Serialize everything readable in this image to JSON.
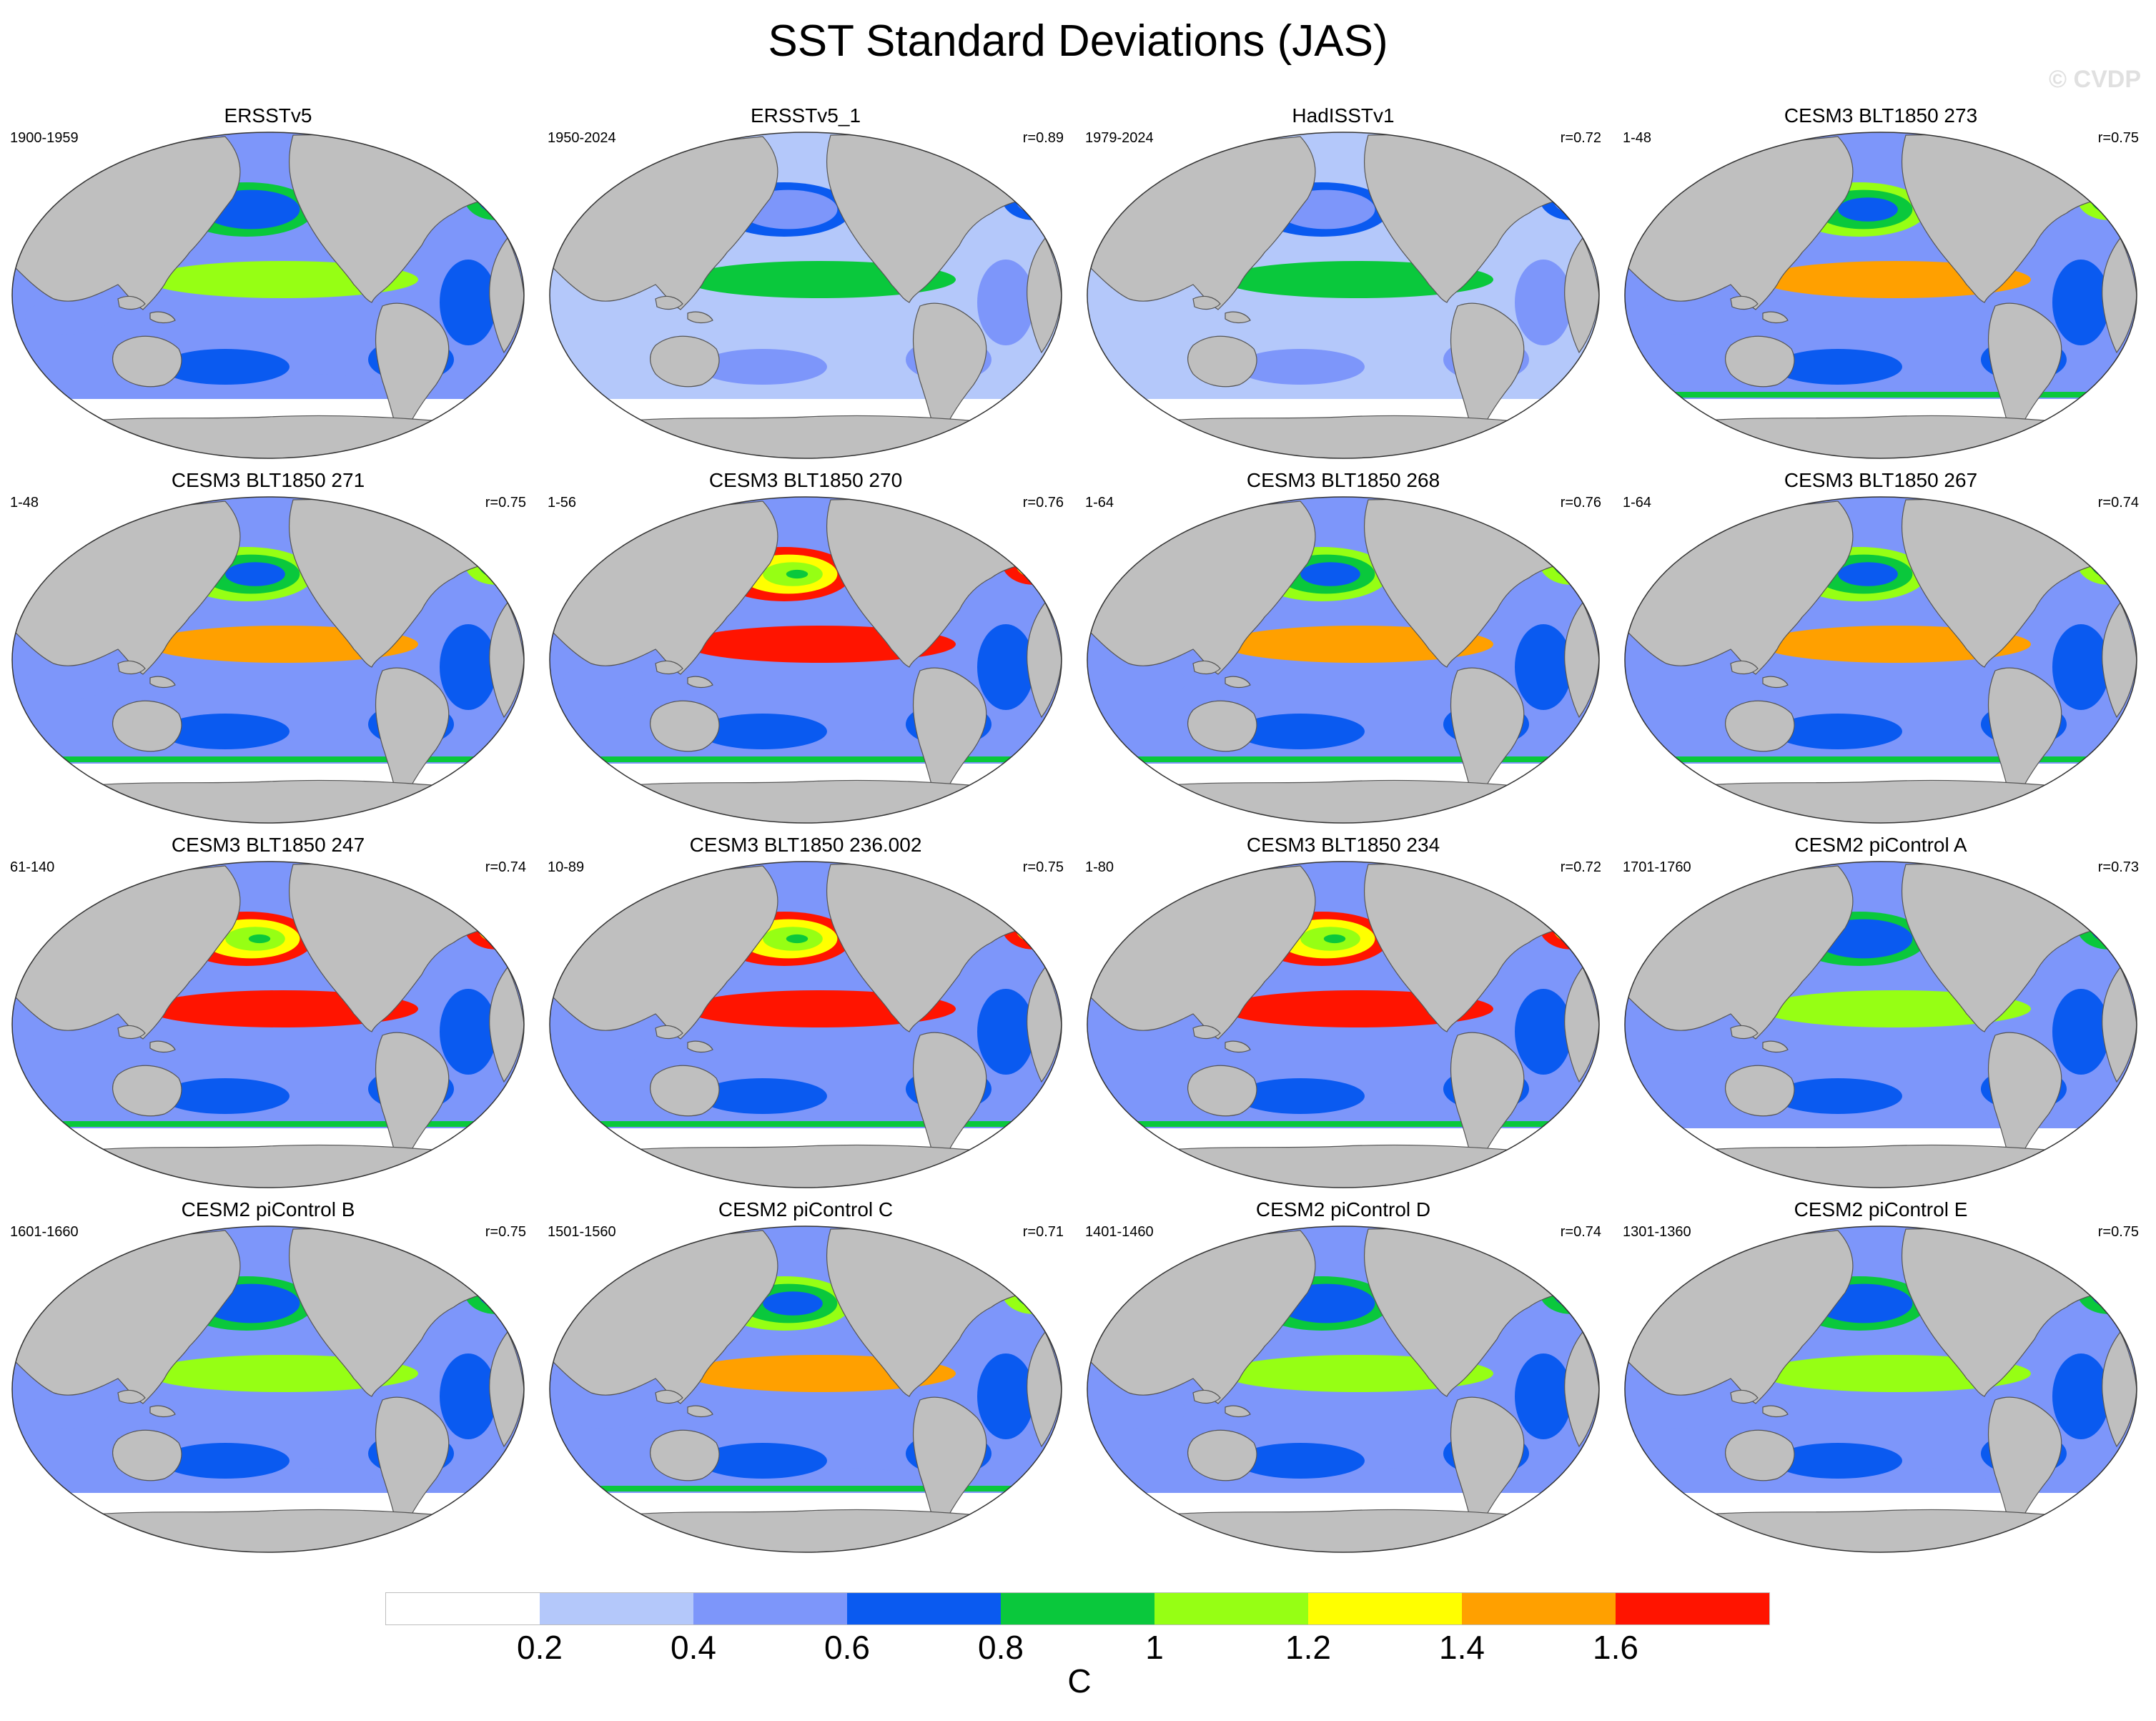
{
  "title": "SST Standard Deviations (JAS)",
  "watermark": "© CVDP",
  "colors": {
    "land": "#bfbfbf",
    "coast": "#555555",
    "levels": [
      "#ffffff",
      "#b4c8fa",
      "#7d96fa",
      "#0a5af0",
      "#0ac83c",
      "#96ff14",
      "#ffff00",
      "#ffa000",
      "#ff1400"
    ]
  },
  "colorbar": {
    "ticks": [
      "0.2",
      "0.4",
      "0.6",
      "0.8",
      "1",
      "1.2",
      "1.4",
      "1.6"
    ],
    "unit": "C"
  },
  "panels": [
    {
      "title": "ERSSTv5",
      "period": "1900-1959",
      "corr": "",
      "intensity": 1
    },
    {
      "title": "ERSSTv5_1",
      "period": "1950-2024",
      "corr": "r=0.89",
      "intensity": 0
    },
    {
      "title": "HadISSTv1",
      "period": "1979-2024",
      "corr": "r=0.72",
      "intensity": 0
    },
    {
      "title": "CESM3 BLT1850 273",
      "period": "1-48",
      "corr": "r=0.75",
      "intensity": 2
    },
    {
      "title": "CESM3 BLT1850 271",
      "period": "1-48",
      "corr": "r=0.75",
      "intensity": 2
    },
    {
      "title": "CESM3 BLT1850 270",
      "period": "1-56",
      "corr": "r=0.76",
      "intensity": 3
    },
    {
      "title": "CESM3 BLT1850 268",
      "period": "1-64",
      "corr": "r=0.76",
      "intensity": 2
    },
    {
      "title": "CESM3 BLT1850 267",
      "period": "1-64",
      "corr": "r=0.74",
      "intensity": 2
    },
    {
      "title": "CESM3 BLT1850 247",
      "period": "61-140",
      "corr": "r=0.74",
      "intensity": 3
    },
    {
      "title": "CESM3 BLT1850 236.002",
      "period": "10-89",
      "corr": "r=0.75",
      "intensity": 3
    },
    {
      "title": "CESM3 BLT1850 234",
      "period": "1-80",
      "corr": "r=0.72",
      "intensity": 3
    },
    {
      "title": "CESM2 piControl A",
      "period": "1701-1760",
      "corr": "r=0.73",
      "intensity": 1
    },
    {
      "title": "CESM2 piControl B",
      "period": "1601-1660",
      "corr": "r=0.75",
      "intensity": 1
    },
    {
      "title": "CESM2 piControl C",
      "period": "1501-1560",
      "corr": "r=0.71",
      "intensity": 2
    },
    {
      "title": "CESM2 piControl D",
      "period": "1401-1460",
      "corr": "r=0.74",
      "intensity": 1
    },
    {
      "title": "CESM2 piControl E",
      "period": "1301-1360",
      "corr": "r=0.75",
      "intensity": 1
    }
  ]
}
